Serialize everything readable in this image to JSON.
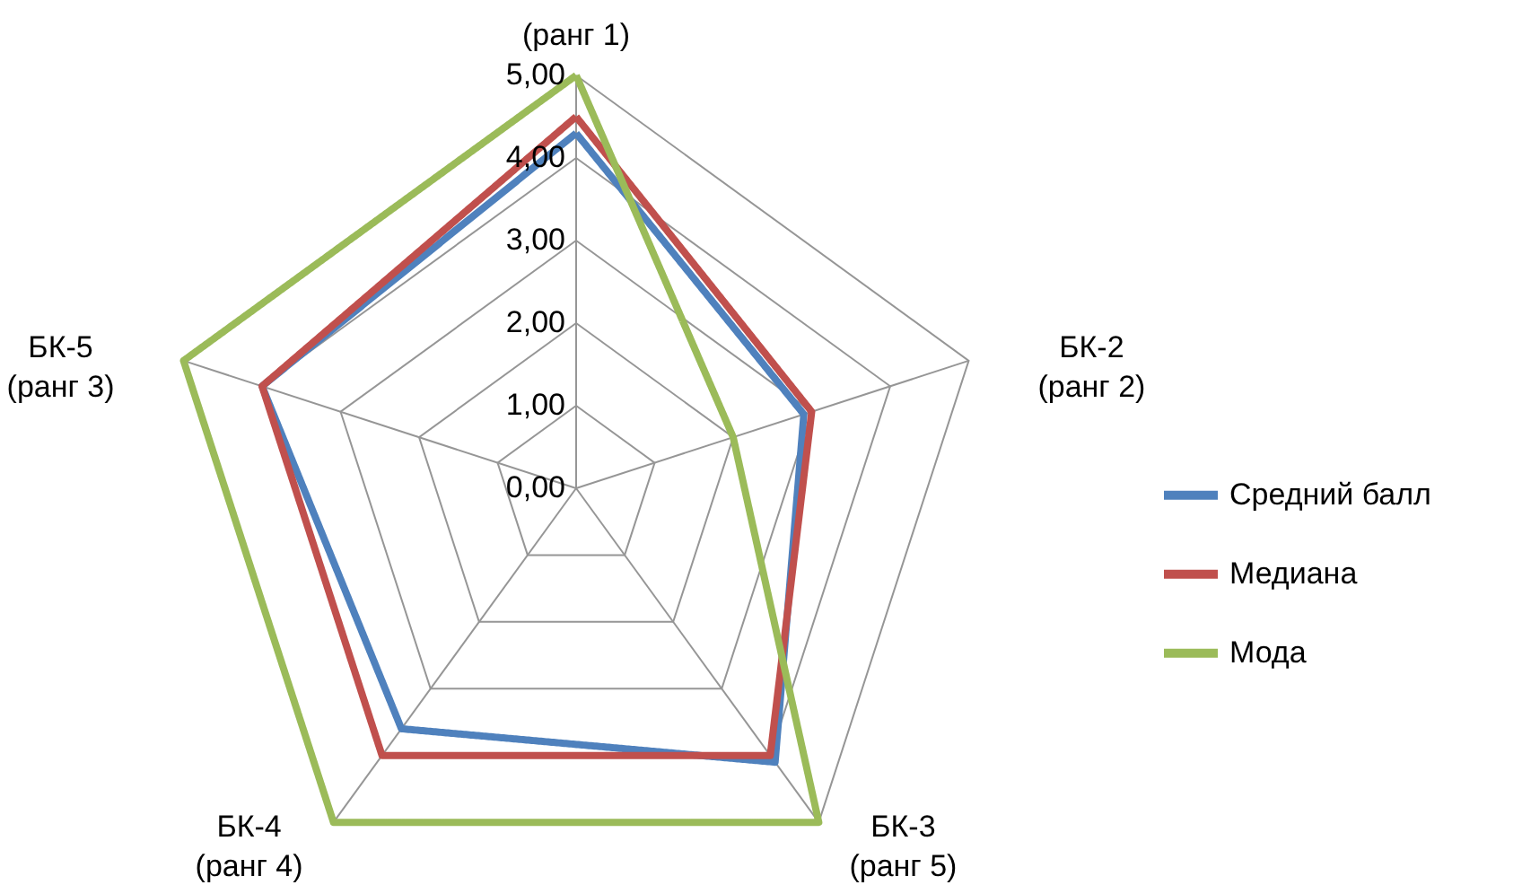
{
  "chart_data": {
    "type": "radar",
    "categories": [
      "(ранг 1)",
      "БК-2\n(ранг 2)",
      "БК-3\n(ранг 5)",
      "БК-4\n(ранг 4)",
      "БК-5\n(ранг 3)"
    ],
    "series": [
      {
        "name": "Средний  балл",
        "color": "#4f81bd",
        "values": [
          4.3,
          2.9,
          4.1,
          3.6,
          4.0
        ]
      },
      {
        "name": "Медиана",
        "color": "#c0504d",
        "values": [
          4.5,
          3.0,
          4.0,
          4.0,
          4.0
        ]
      },
      {
        "name": "Мода",
        "color": "#9bbb59",
        "values": [
          5.0,
          2.0,
          5.0,
          5.0,
          5.0
        ]
      }
    ],
    "ylim": [
      0,
      5
    ],
    "yticks": [
      {
        "value": 0,
        "label": "0,00"
      },
      {
        "value": 1,
        "label": "1,00"
      },
      {
        "value": 2,
        "label": "2,00"
      },
      {
        "value": 3,
        "label": "3,00"
      },
      {
        "value": 4,
        "label": "4,00"
      },
      {
        "value": 5,
        "label": "5,00"
      }
    ],
    "grid": true,
    "legend": "right",
    "marker": "none",
    "line_style": "solid"
  }
}
